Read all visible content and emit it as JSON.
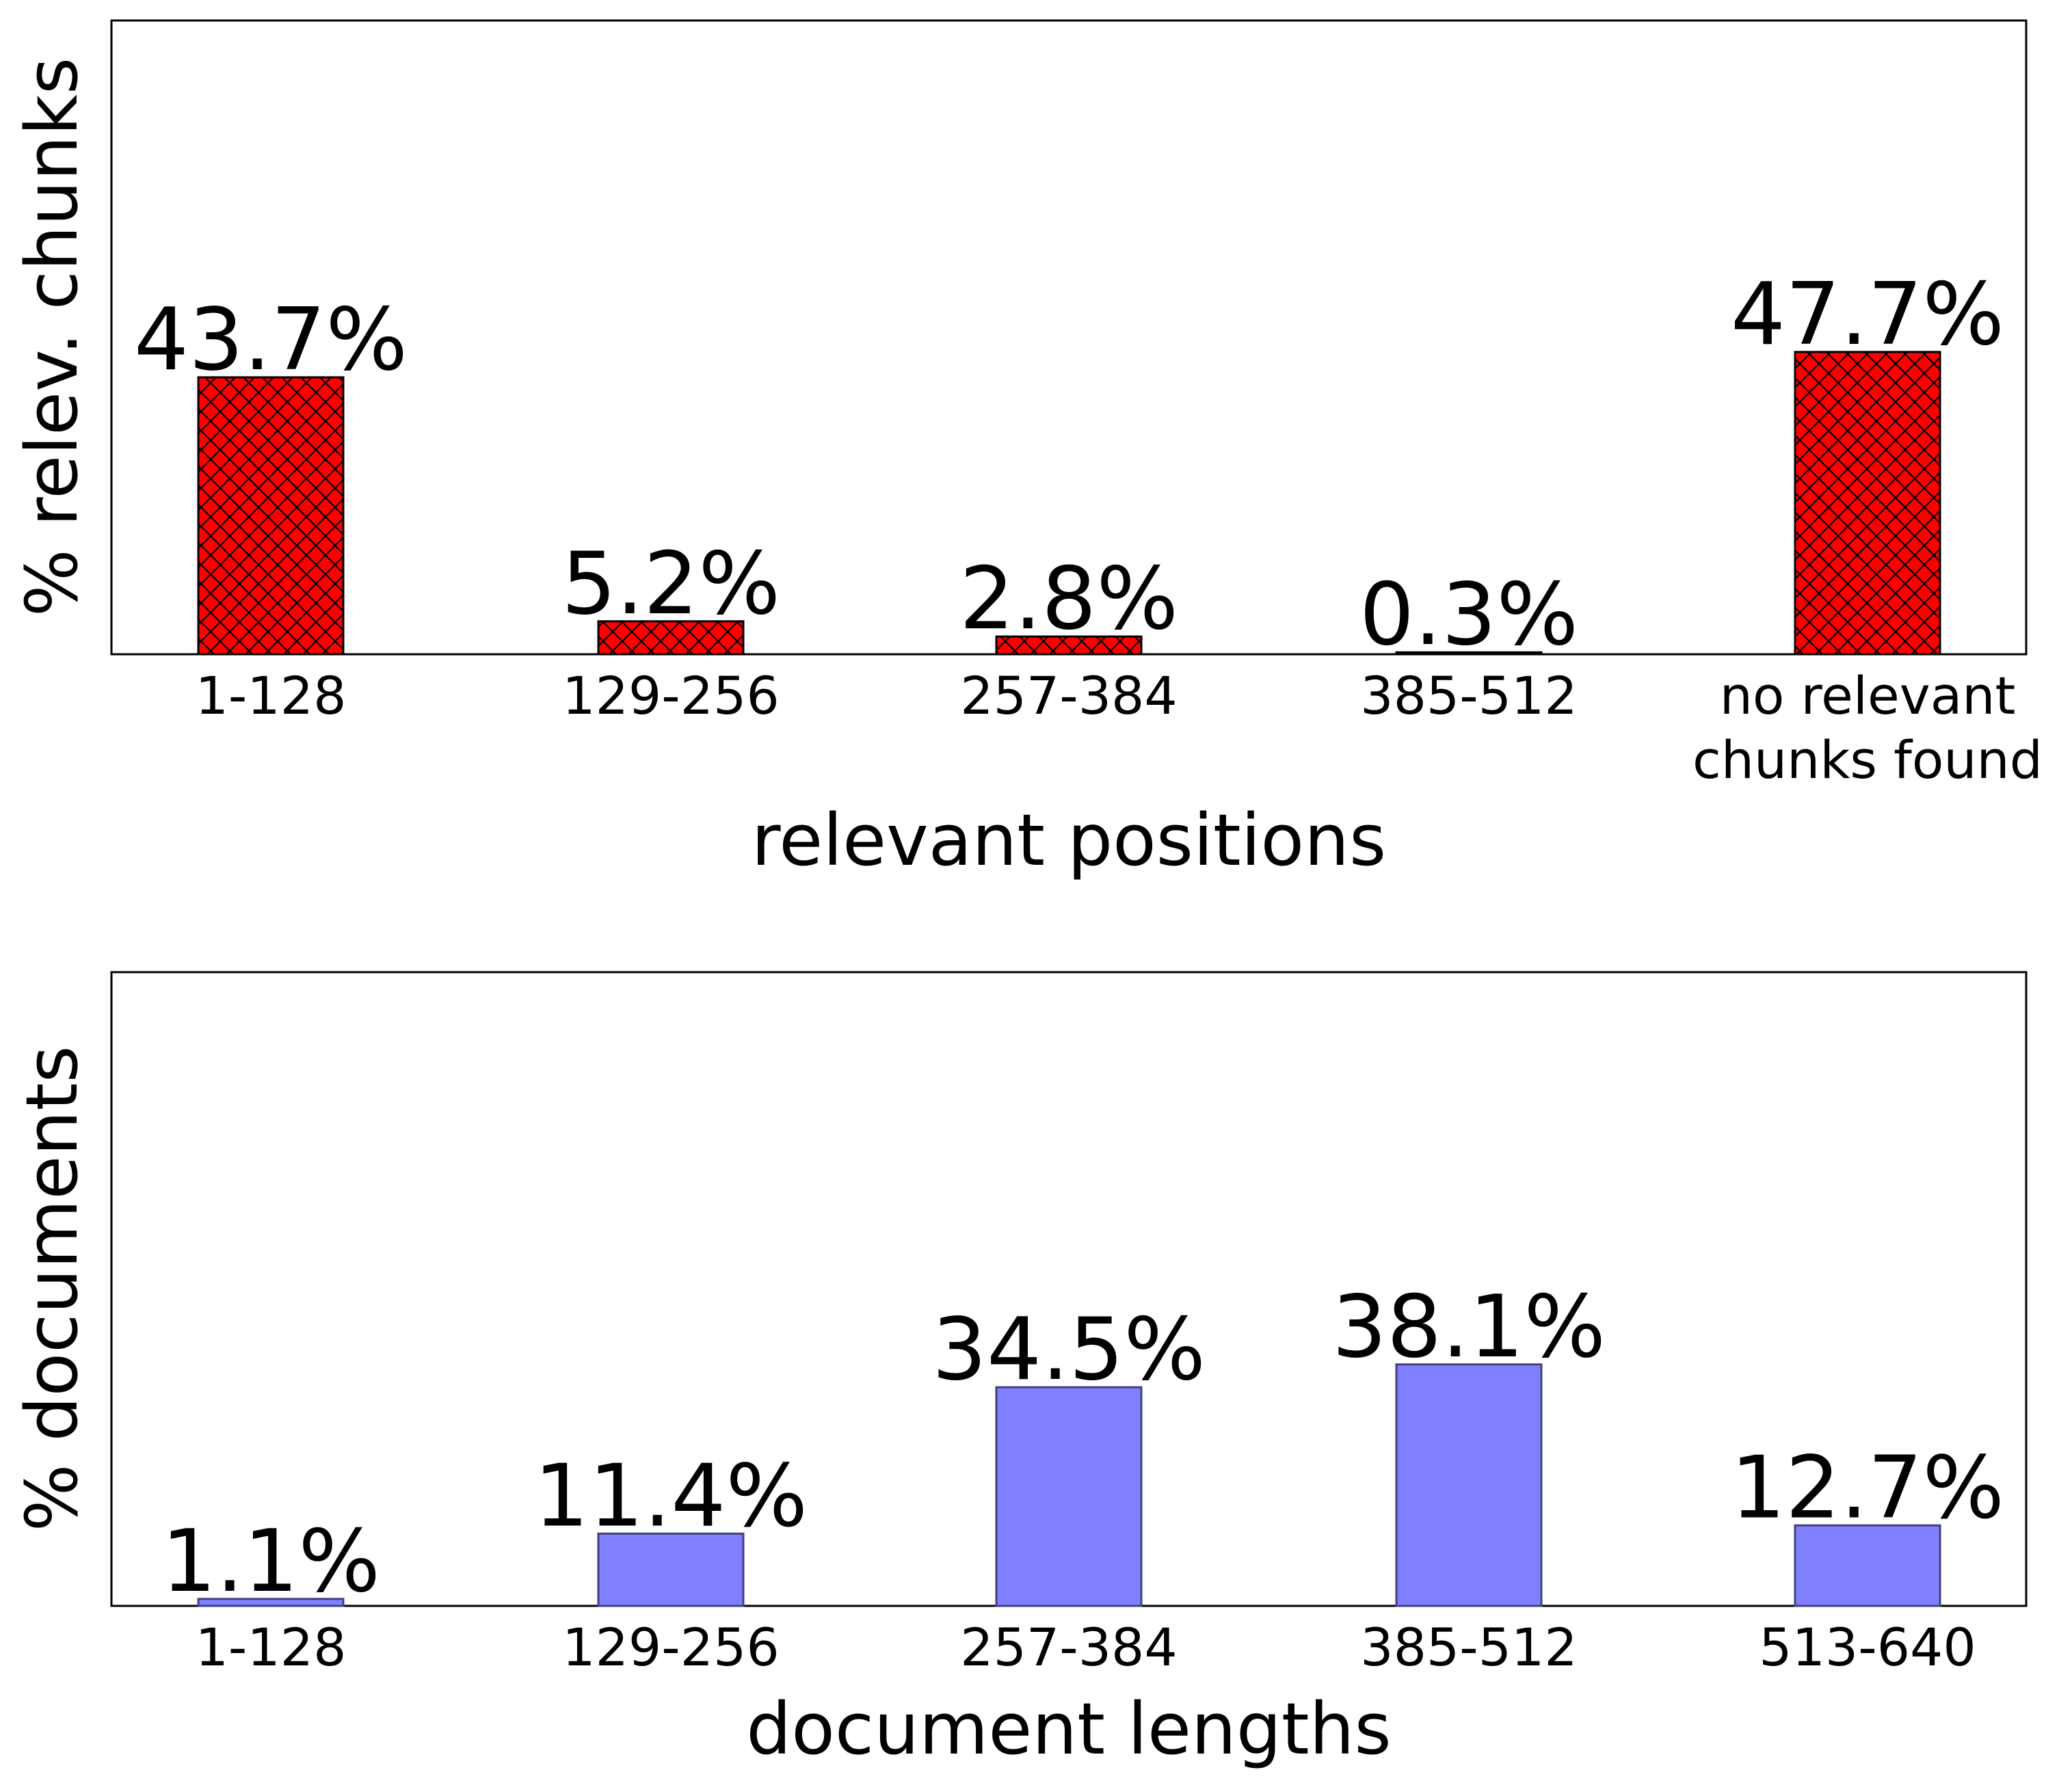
{
  "chart_data": [
    {
      "type": "bar",
      "categories": [
        "1-128",
        "129-256",
        "257-384",
        "385-512",
        "no relevant\nchunks found"
      ],
      "values": [
        43.7,
        5.2,
        2.8,
        0.3,
        47.7
      ],
      "data_labels": [
        "43.7%",
        "5.2%",
        "2.8%",
        "0.3%",
        "47.7%"
      ],
      "xlabel": "relevant positions",
      "ylabel": "% relev. chunks",
      "ylim": [
        0,
        100
      ],
      "y_ticks_shown": false,
      "grid": false,
      "bar_style": {
        "fill": "#ff0000",
        "hatch": "crosshatch",
        "edge": "#000000"
      }
    },
    {
      "type": "bar",
      "categories": [
        "1-128",
        "129-256",
        "257-384",
        "385-512",
        "513-640"
      ],
      "values": [
        1.1,
        11.4,
        34.5,
        38.1,
        12.7
      ],
      "data_labels": [
        "1.1%",
        "11.4%",
        "34.5%",
        "38.1%",
        "12.7%"
      ],
      "xlabel": "document lengths",
      "ylabel": "% documents",
      "ylim": [
        0,
        100
      ],
      "y_ticks_shown": false,
      "grid": false,
      "bar_style": {
        "fill": "#8080ff",
        "hatch": "none",
        "edge": "#404080"
      }
    }
  ]
}
